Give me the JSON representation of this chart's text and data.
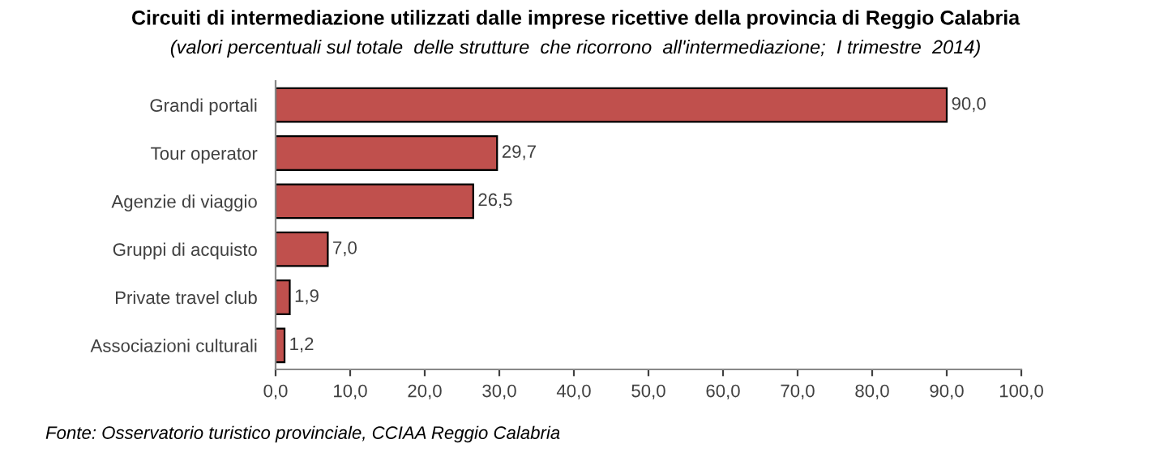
{
  "chart_data": {
    "type": "bar",
    "orientation": "horizontal",
    "title": "Circuiti di intermediazione utilizzati dalle imprese ricettive della provincia di Reggio Calabria",
    "subtitle": "(valori percentuali sul totale  delle strutture  che ricorrono  all'intermediazione;  I trimestre  2014)",
    "categories": [
      "Grandi portali",
      "Tour operator",
      "Agenzie di viaggio",
      "Gruppi di acquisto",
      "Private travel club",
      "Associazioni culturali"
    ],
    "values": [
      90.0,
      29.7,
      26.5,
      7.0,
      1.9,
      1.2
    ],
    "value_labels": [
      "90,0",
      "29,7",
      "26,5",
      "7,0",
      "1,9",
      "1,2"
    ],
    "color": "#c0504d",
    "xlim": [
      0,
      100
    ],
    "xticks": [
      {
        "value": 0,
        "label": "0,0"
      },
      {
        "value": 10,
        "label": "10,0"
      },
      {
        "value": 20,
        "label": "20,0"
      },
      {
        "value": 30,
        "label": "30,0"
      },
      {
        "value": 40,
        "label": "40,0"
      },
      {
        "value": 50,
        "label": "50,0"
      },
      {
        "value": 60,
        "label": "60,0"
      },
      {
        "value": 70,
        "label": "70,0"
      },
      {
        "value": 80,
        "label": "80,0"
      },
      {
        "value": 90,
        "label": "90,0"
      },
      {
        "value": 100,
        "label": "100,0"
      }
    ],
    "grid": false,
    "annotations": [
      "Fonte: Osservatorio turistico provinciale, CCIAA Reggio Calabria"
    ]
  }
}
